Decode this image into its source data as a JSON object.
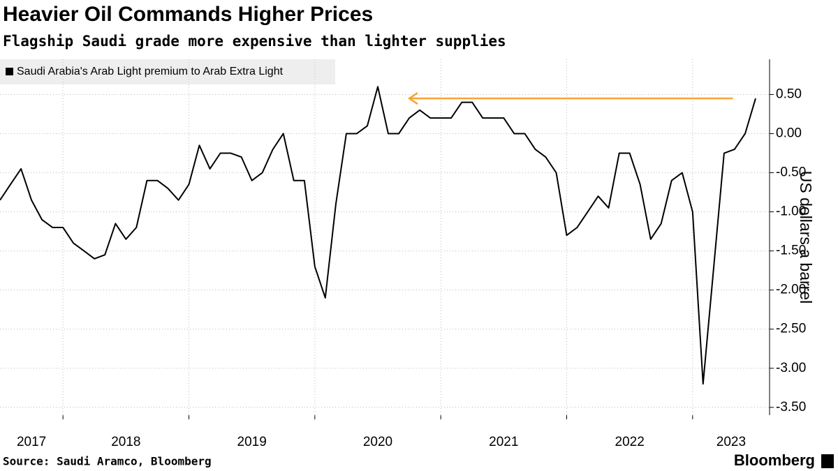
{
  "chart_data": {
    "type": "line",
    "title": "Heavier Oil Commands Higher Prices",
    "subtitle": "Flagship Saudi grade more expensive than lighter supplies",
    "y_axis_label": "US dollars a barrel",
    "source": "Source: Saudi Aramco, Bloomberg",
    "brand": "Bloomberg",
    "legend_position": "upper left",
    "grid": true,
    "xlim": [
      2017.5,
      2023.611
    ],
    "xticks": [
      2017,
      2018,
      2019,
      2020,
      2021,
      2022,
      2023
    ],
    "ylim": [
      -3.6,
      0.95
    ],
    "yticks": [
      {
        "value": 0.5,
        "label": "0.50"
      },
      {
        "value": 0,
        "label": "0.00"
      },
      {
        "value": -0.5,
        "label": "-0.50"
      },
      {
        "value": -1,
        "label": "-1.00"
      },
      {
        "value": -1.5,
        "label": "-1.50"
      },
      {
        "value": -2,
        "label": "-2.00"
      },
      {
        "value": -2.5,
        "label": "-2.50"
      },
      {
        "value": -3,
        "label": "-3.00"
      },
      {
        "value": -3.5,
        "label": "-3.50"
      }
    ],
    "x": [
      2017.5,
      2017.583,
      2017.667,
      2017.75,
      2017.833,
      2017.917,
      2018.0,
      2018.083,
      2018.167,
      2018.25,
      2018.333,
      2018.417,
      2018.5,
      2018.583,
      2018.667,
      2018.75,
      2018.833,
      2018.917,
      2019.0,
      2019.083,
      2019.167,
      2019.25,
      2019.333,
      2019.417,
      2019.5,
      2019.583,
      2019.667,
      2019.75,
      2019.833,
      2019.917,
      2020.0,
      2020.083,
      2020.167,
      2020.25,
      2020.333,
      2020.417,
      2020.5,
      2020.583,
      2020.667,
      2020.75,
      2020.833,
      2020.917,
      2021.0,
      2021.083,
      2021.167,
      2021.25,
      2021.333,
      2021.417,
      2021.5,
      2021.583,
      2021.667,
      2021.75,
      2021.833,
      2021.917,
      2022.0,
      2022.083,
      2022.167,
      2022.25,
      2022.333,
      2022.417,
      2022.5,
      2022.583,
      2022.667,
      2022.75,
      2022.833,
      2022.917,
      2023.0,
      2023.083,
      2023.167,
      2023.25,
      2023.333,
      2023.417,
      2023.5
    ],
    "series": [
      {
        "name": "Saudi Arabia's Arab Light premium to Arab Extra Light",
        "color": "#000000",
        "values": [
          -0.85,
          -0.65,
          -0.45,
          -0.85,
          -1.1,
          -1.2,
          -1.2,
          -1.4,
          -1.5,
          -1.6,
          -1.55,
          -1.15,
          -1.35,
          -1.2,
          -0.6,
          -0.6,
          -0.7,
          -0.85,
          -0.65,
          -0.15,
          -0.45,
          -0.25,
          -0.25,
          -0.3,
          -0.6,
          -0.5,
          -0.2,
          0.0,
          -0.6,
          -0.6,
          -1.7,
          -2.1,
          -0.9,
          0.0,
          0.0,
          0.1,
          0.6,
          0.0,
          0.0,
          0.2,
          0.3,
          0.2,
          0.2,
          0.2,
          0.4,
          0.4,
          0.2,
          0.2,
          0.2,
          0.0,
          0.0,
          -0.2,
          -0.3,
          -0.5,
          -1.3,
          -1.2,
          -1.0,
          -0.8,
          -0.95,
          -0.25,
          -0.25,
          -0.65,
          -1.35,
          -1.15,
          -0.6,
          -0.5,
          -1.0,
          -3.2,
          -1.72,
          -0.25,
          -0.2,
          0.0,
          0.45
        ]
      }
    ],
    "annotation_arrow": {
      "y": 0.45,
      "x": [
        2023.32,
        2020.75
      ],
      "color": "#f7a535"
    }
  }
}
